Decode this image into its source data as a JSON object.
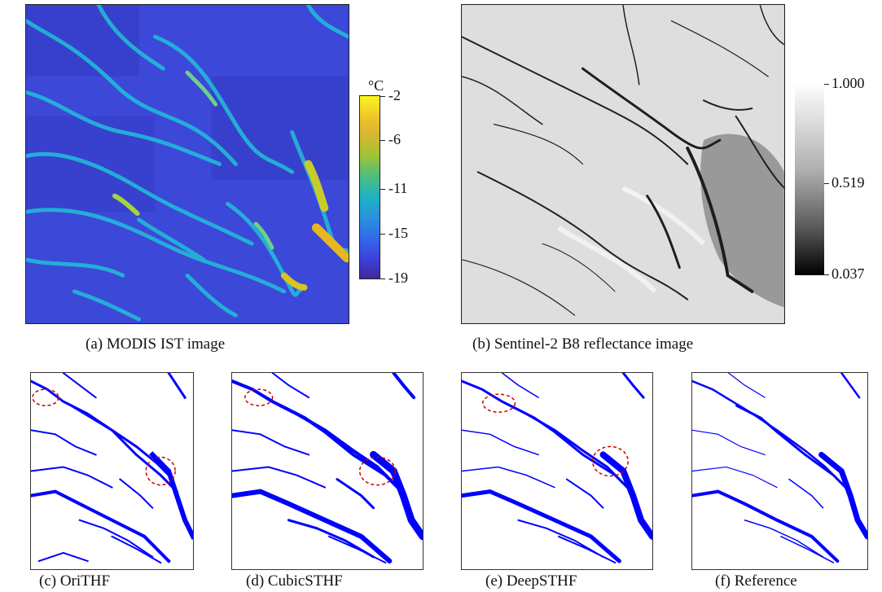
{
  "colors": {
    "ist_background": "#3a49d6",
    "ist_fracture_cyan": "#1fb5d8",
    "ist_warm_yellow": "#e8c51c",
    "fracture_map_water": "#0000ff",
    "fracture_map_ice": "#ffffff",
    "highlight_circle": "#cc0000"
  },
  "top_panels": {
    "modis": {
      "caption": "(a)  MODIS IST image",
      "colorbar": {
        "unit": "°C",
        "ticks": [
          "-2",
          "-6",
          "-11",
          "-15",
          "-19"
        ],
        "colormap": "parula"
      }
    },
    "sentinel": {
      "caption": "(b)  Sentinel-2 B8 reflectance image",
      "colorbar": {
        "ticks": [
          "1.000",
          "0.519",
          "0.037"
        ],
        "colormap": "gray"
      }
    }
  },
  "bottom_panels": [
    {
      "caption": "(c)  OriTHF",
      "circles": 2
    },
    {
      "caption": "(d)  CubicSTHF",
      "circles": 2
    },
    {
      "caption": "(e)  DeepSTHF",
      "circles": 2
    },
    {
      "caption": "(f)  Reference",
      "circles": 0
    }
  ]
}
